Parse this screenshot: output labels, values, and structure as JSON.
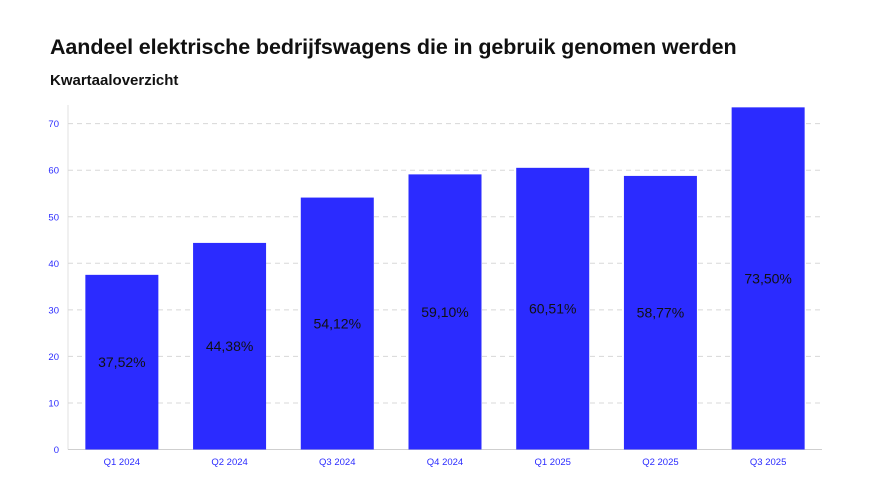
{
  "title": "Aandeel elektrische bedrijfswagens die in gebruik genomen werden",
  "subtitle": "Kwartaaloverzicht",
  "colors": {
    "bar": "#2b2bff",
    "axis_text": "#2b2bff",
    "grid": "#d8d8d8",
    "label": "#111111"
  },
  "chart_data": {
    "type": "bar",
    "title": "Aandeel elektrische bedrijfswagens die in gebruik genomen werden",
    "subtitle": "Kwartaaloverzicht",
    "categories": [
      "Q1 2024",
      "Q2 2024",
      "Q3 2024",
      "Q4 2024",
      "Q1 2025",
      "Q2 2025",
      "Q3 2025"
    ],
    "values": [
      37.52,
      44.38,
      54.12,
      59.1,
      60.51,
      58.77,
      73.5
    ],
    "data_labels": [
      "37,52%",
      "44,38%",
      "54,12%",
      "59,10%",
      "60,51%",
      "58,77%",
      "73,50%"
    ],
    "yticks": [
      0,
      10,
      20,
      30,
      40,
      50,
      60,
      70
    ],
    "ylim": [
      0,
      70
    ],
    "grid": true,
    "xlabel": "",
    "ylabel": ""
  }
}
